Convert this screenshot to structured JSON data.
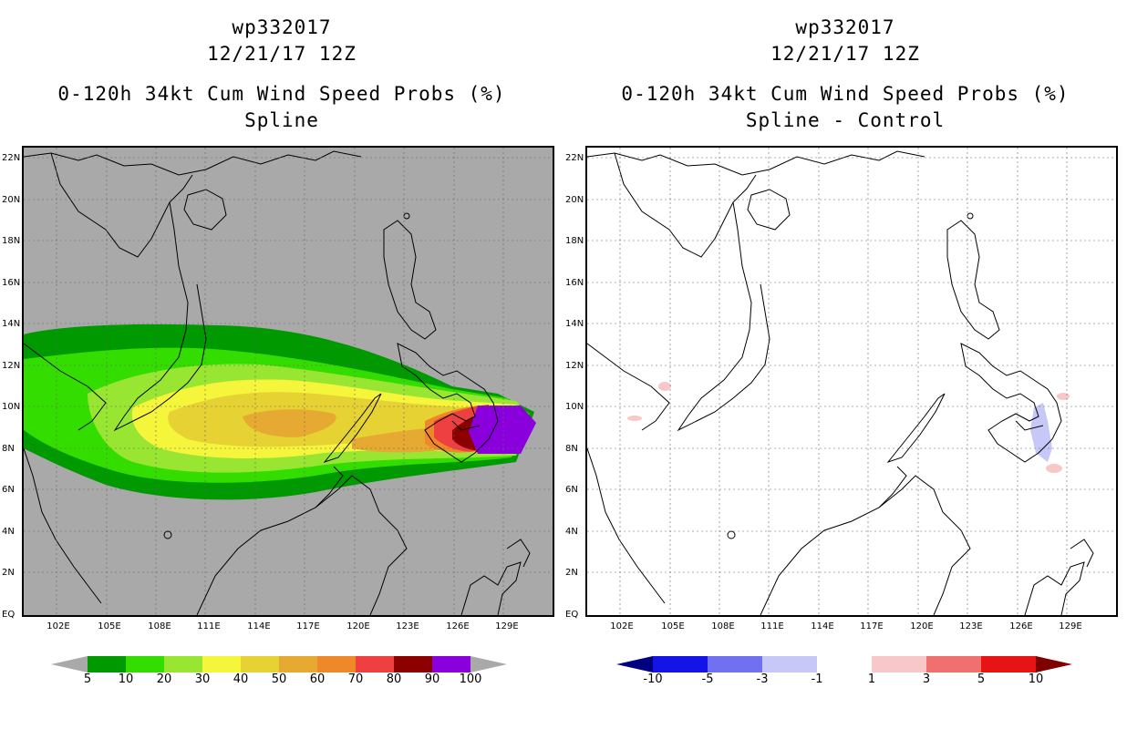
{
  "left_panel": {
    "title_line1": "wp332017",
    "title_line2": "12/21/17 12Z",
    "title_line3": "0-120h 34kt Cum Wind Speed Probs (%)",
    "title_line4": "Spline",
    "colorbar": {
      "labels": [
        "5",
        "10",
        "20",
        "30",
        "40",
        "50",
        "60",
        "70",
        "80",
        "90",
        "100"
      ],
      "colors": [
        "#a9a9a9",
        "#009900",
        "#33dd00",
        "#99e632",
        "#f5f53c",
        "#e6d232",
        "#e6aa32",
        "#ee8828",
        "#ee4040",
        "#8c0000",
        "#8a00dd",
        "#a9a9a9"
      ]
    }
  },
  "right_panel": {
    "title_line1": "wp332017",
    "title_line2": "12/21/17 12Z",
    "title_line3": "0-120h 34kt Cum Wind Speed Probs (%)",
    "title_line4": "Spline - Control",
    "colorbar": {
      "labels": [
        "-10",
        "-5",
        "-3",
        "-1",
        "1",
        "3",
        "5",
        "10"
      ],
      "colors": [
        "#000080",
        "#1414e6",
        "#7070f0",
        "#c8c8f8",
        "#ffffff",
        "#f8c8c8",
        "#f07070",
        "#e61414",
        "#800000"
      ]
    }
  },
  "lat_labels": [
    "22N",
    "20N",
    "18N",
    "16N",
    "14N",
    "12N",
    "10N",
    "8N",
    "6N",
    "4N",
    "2N",
    "EQ"
  ],
  "lon_labels": [
    "102E",
    "105E",
    "108E",
    "111E",
    "114E",
    "117E",
    "120E",
    "123E",
    "126E",
    "129E"
  ],
  "extent": {
    "lon": [
      99.0,
      131.0
    ],
    "lat": [
      0,
      22.6
    ]
  }
}
